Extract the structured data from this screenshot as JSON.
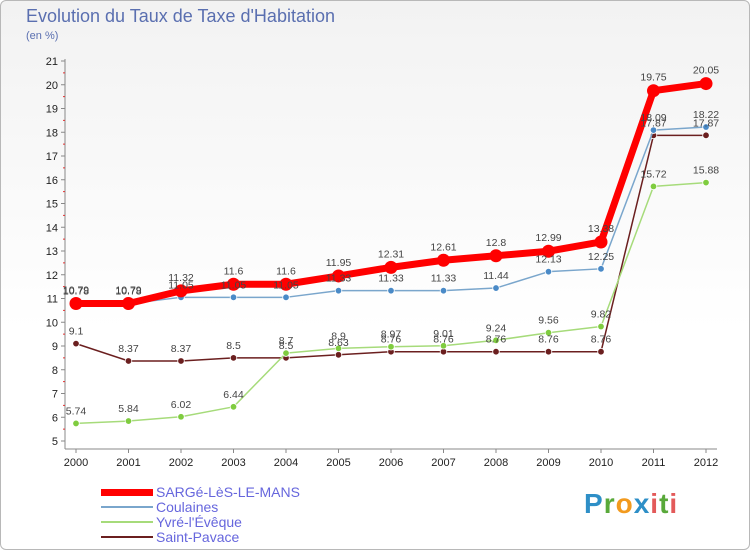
{
  "title": "Evolution du Taux de Taxe d'Habitation",
  "subtitle": "(en %)",
  "logo": [
    "P",
    "r",
    "o",
    "x",
    "i",
    "t",
    "i"
  ],
  "chart_data": {
    "type": "line",
    "x": [
      "2000",
      "2001",
      "2002",
      "2003",
      "2004",
      "2005",
      "2006",
      "2007",
      "2008",
      "2009",
      "2010",
      "2011",
      "2012"
    ],
    "yticks": [
      "5",
      "6",
      "7",
      "8",
      "9",
      "10",
      "11",
      "12",
      "13",
      "14",
      "15",
      "16",
      "17",
      "18",
      "19",
      "20",
      "21"
    ],
    "ylim": [
      5,
      21
    ],
    "grid": false,
    "legend_position": "bottom-left",
    "series": [
      {
        "name": "Saint-Pavace",
        "color": "#6b1f1f",
        "marker": "#6b1f1f",
        "values": [
          9.1,
          8.37,
          8.37,
          8.5,
          8.5,
          8.63,
          8.76,
          8.76,
          8.76,
          8.76,
          8.76,
          17.87,
          17.87
        ],
        "labels": [
          "9.1",
          "8.37",
          "8.37",
          "8.5",
          "8.5",
          "8.63",
          "8.76",
          "8.76",
          "8.76",
          "8.76",
          "8.76",
          "17.87",
          "17.87"
        ]
      },
      {
        "name": "Yvré-l'Évêque",
        "color": "#a6db7a",
        "marker": "#7fcc3f",
        "values": [
          5.74,
          5.84,
          6.02,
          6.44,
          8.7,
          8.9,
          8.97,
          9.01,
          9.24,
          9.56,
          9.82,
          15.72,
          15.88
        ],
        "labels": [
          "5.74",
          "5.84",
          "6.02",
          "6.44",
          "8.7",
          "8.9",
          "8.97",
          "9.01",
          "9.24",
          "9.56",
          "9.82",
          "15.72",
          "15.88"
        ]
      },
      {
        "name": "Coulaines",
        "color": "#7aa6cc",
        "marker": "#4a8ac7",
        "values": [
          10.78,
          10.78,
          11.05,
          11.05,
          11.05,
          11.33,
          11.33,
          11.33,
          11.44,
          12.13,
          12.25,
          18.09,
          18.22
        ],
        "labels": [
          "10.78",
          "10.78",
          "11.05",
          "11.05",
          "11.05",
          "11.33",
          "11.33",
          "11.33",
          "11.44",
          "12.13",
          "12.25",
          "18.09",
          "18.22"
        ]
      },
      {
        "name": "SARGé-LèS-LE-MANS",
        "color": "#ff0000",
        "marker": "#ff0000",
        "values": [
          10.79,
          10.79,
          11.32,
          11.6,
          11.6,
          11.95,
          12.31,
          12.61,
          12.8,
          12.99,
          13.38,
          19.75,
          20.05
        ],
        "labels": [
          "10.79",
          "10.79",
          "11.32",
          "11.6",
          "11.6",
          "11.95",
          "12.31",
          "12.61",
          "12.8",
          "12.99",
          "13.38",
          "19.75",
          "20.05"
        ]
      }
    ],
    "legend": [
      "SARGé-LèS-LE-MANS",
      "Coulaines",
      "Yvré-l'Évêque",
      "Saint-Pavace"
    ]
  }
}
